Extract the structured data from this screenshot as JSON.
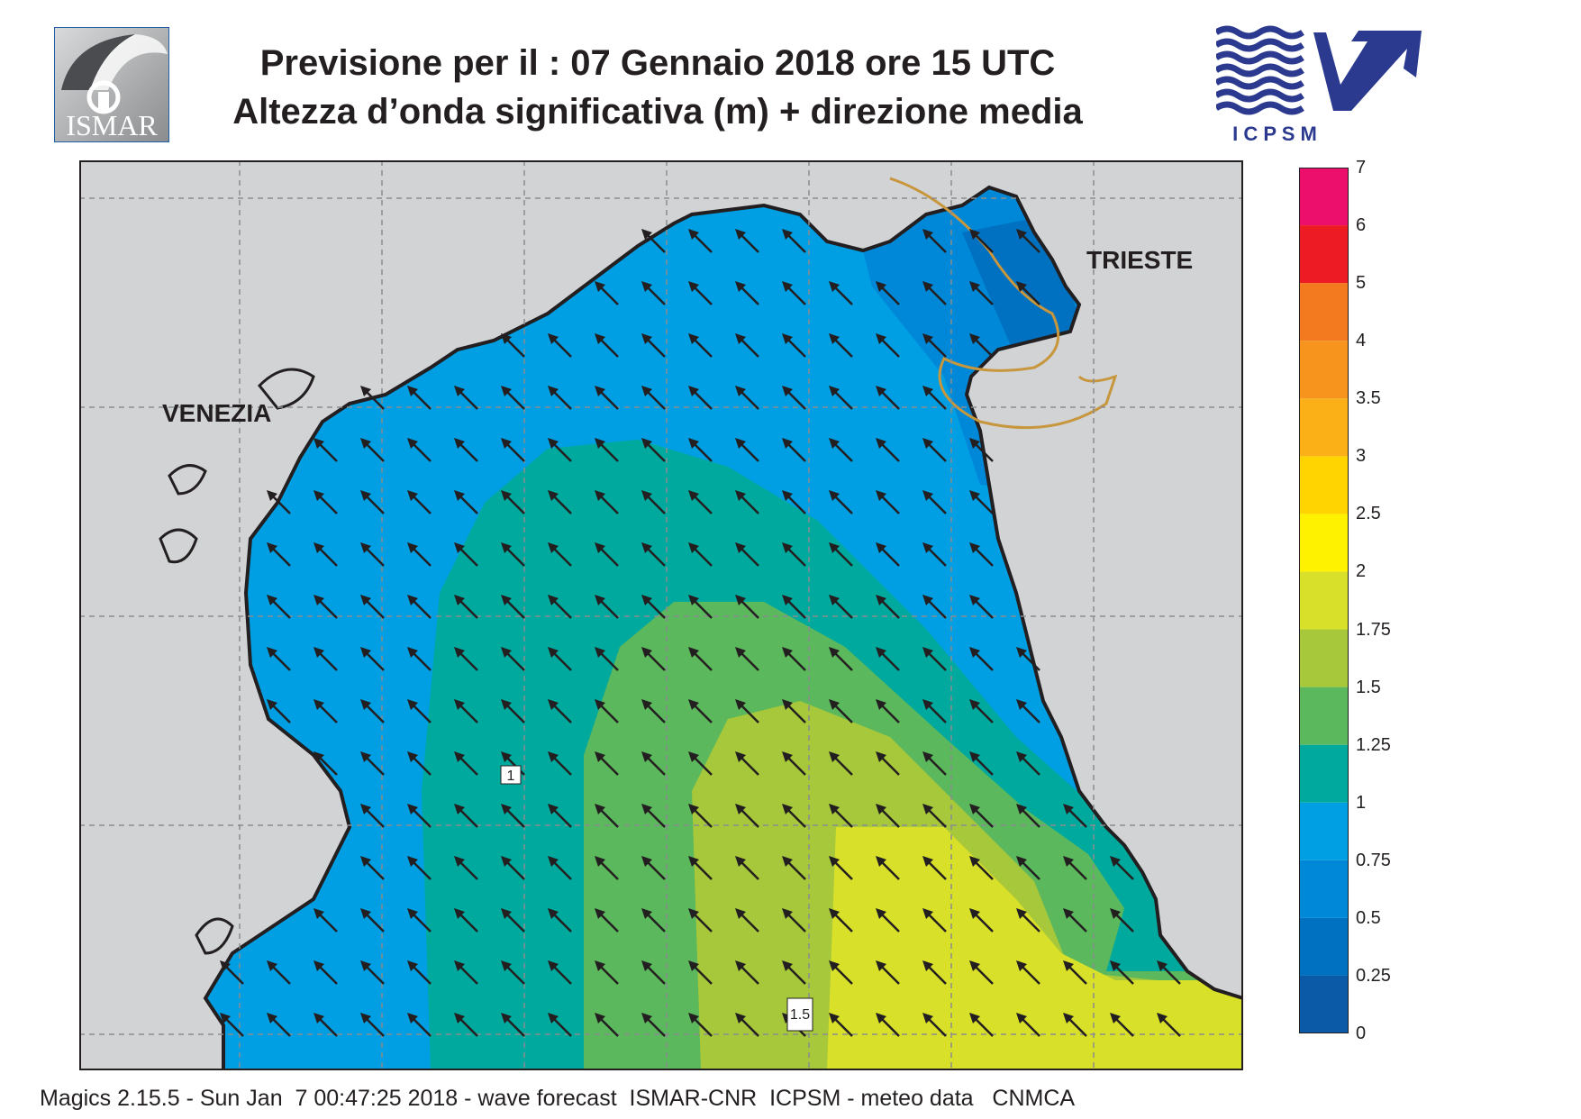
{
  "header": {
    "title_line1": "Previsione per il  :  07  Gennaio  2018   ore 15 UTC",
    "title_line2": "Altezza d’onda significativa (m) + direzione media"
  },
  "logos": {
    "left": {
      "icon": "ismar-logo",
      "text": "ISMAR"
    },
    "right": {
      "icon": "icpsm-logo",
      "text": "I C P S M"
    }
  },
  "map": {
    "cities": [
      "VENEZIA",
      "TRIESTE"
    ],
    "contour_labels": [
      "1",
      "1.5"
    ],
    "colors": {
      "land": "#d1d3d4",
      "coast": "#231f20",
      "border": "#c8963c",
      "arrow": "#231f20"
    },
    "wave_direction": "towards north-west"
  },
  "colorbar": {
    "levels": [
      "0",
      "0.25",
      "0.5",
      "0.75",
      "1",
      "1.25",
      "1.5",
      "1.75",
      "2",
      "2.5",
      "3",
      "3.5",
      "4",
      "5",
      "6",
      "7"
    ],
    "colors": [
      "#0a5aa8",
      "#0070c0",
      "#0088d8",
      "#009ee2",
      "#00a99d",
      "#5cb85c",
      "#a6c83a",
      "#d8e02a",
      "#fff200",
      "#ffd400",
      "#fbb018",
      "#f7941d",
      "#f47a20",
      "#ed1c24",
      "#ec0f6b"
    ]
  },
  "footer": {
    "text": "Magics 2.15.5 - Sun Jan  7 00:47:25 2018 - wave forecast  ISMAR-CNR  ICPSM - meteo data   CNMCA"
  }
}
